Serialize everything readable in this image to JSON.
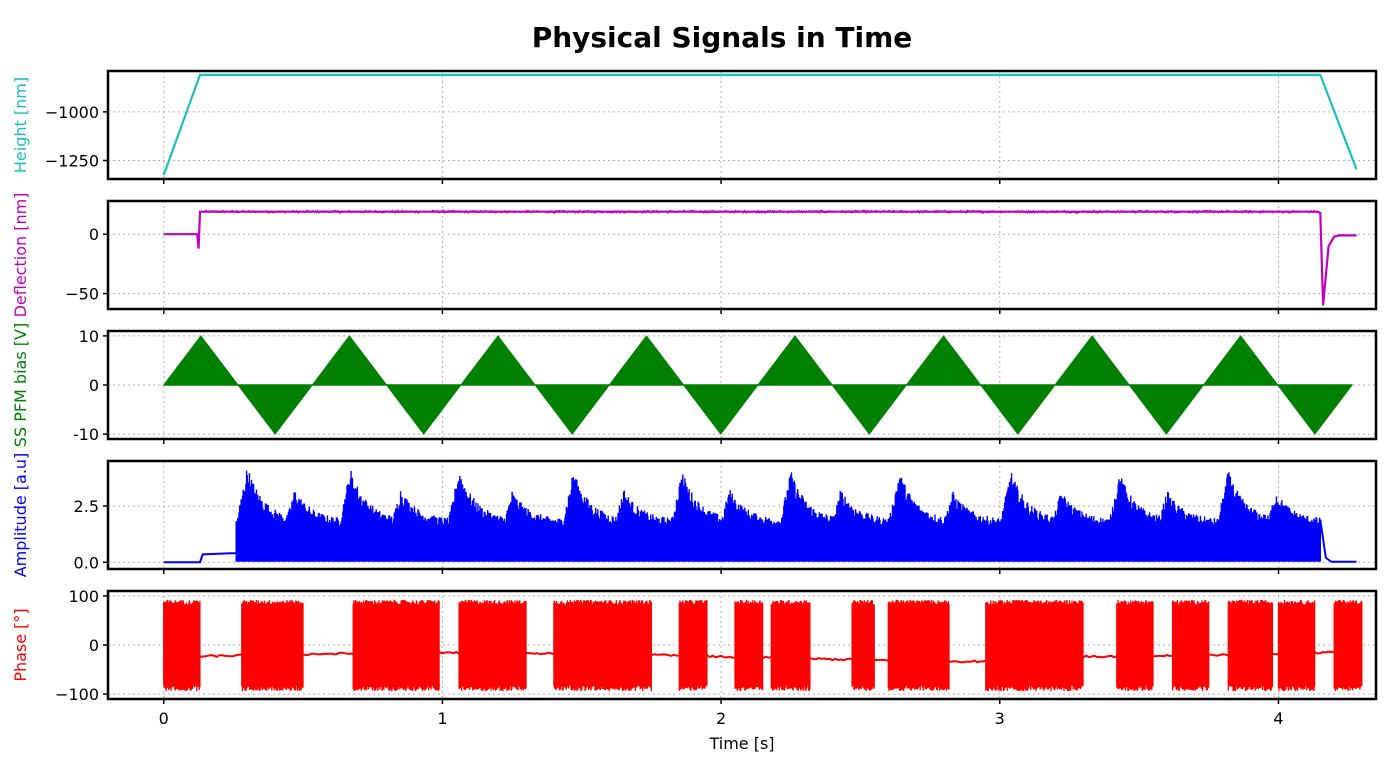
{
  "chart_data": {
    "type": "line",
    "title": "Physical Signals in Time",
    "xlabel": "Time [s]",
    "xlim": [
      -0.2,
      4.35
    ],
    "x_ticks": [
      0,
      1,
      2,
      3,
      4
    ],
    "x_tick_labels": [
      "0",
      "1",
      "2",
      "3",
      "4"
    ],
    "grid": true,
    "panels": [
      {
        "name": "height",
        "ylabel": "Height [nm]",
        "color": "#1ABFBF",
        "ylim": [
          -1345,
          -790
        ],
        "y_ticks": [
          -1000,
          -1250
        ],
        "y_tick_labels": [
          "−1000",
          "−1250"
        ],
        "series": [
          {
            "x": [
              0,
              0.13,
              4.15,
              4.28
            ],
            "y": [
              -1325,
              -810,
              -810,
              -1295
            ]
          }
        ]
      },
      {
        "name": "deflection",
        "ylabel": "Deflection [nm]",
        "color": "#BF00BF",
        "ylim": [
          -63,
          28
        ],
        "y_ticks": [
          0,
          -50
        ],
        "y_tick_labels": [
          "0",
          "−50"
        ],
        "series": [
          {
            "x": [
              0,
              0.12,
              0.125,
              0.13,
              0.135,
              4.14,
              4.15,
              4.16,
              4.17,
              4.18,
              4.2,
              4.22,
              4.28
            ],
            "y": [
              0,
              0,
              -12,
              19,
              19,
              19,
              18,
              -60,
              -35,
              -10,
              -2,
              -1,
              -1
            ]
          }
        ]
      },
      {
        "name": "bias",
        "ylabel": "SS PFM bias [V]",
        "color": "#008000",
        "ylim": [
          -11,
          11
        ],
        "y_ticks": [
          10,
          0,
          -10
        ],
        "y_tick_labels": [
          "10",
          "0",
          "-10"
        ],
        "cycle_period": 0.533,
        "cycles": 8,
        "amplitude": 10
      },
      {
        "name": "amplitude",
        "ylabel": "Amplitude [a.u]",
        "color": "#0000FF",
        "ylim": [
          -0.3,
          4.5
        ],
        "y_ticks": [
          2.5,
          0.0
        ],
        "y_tick_labels": [
          "2.5",
          "0.0"
        ],
        "peaks_x": [
          0.3,
          0.47,
          0.67,
          0.85,
          1.06,
          1.25,
          1.47,
          1.65,
          1.86,
          2.03,
          2.25,
          2.43,
          2.64,
          2.83,
          3.04,
          3.22,
          3.43,
          3.6,
          3.82,
          3.99
        ],
        "peaks_y": [
          4.3,
          3.3,
          4.2,
          3.3,
          4.2,
          3.2,
          4.1,
          3.3,
          4.1,
          3.3,
          4.1,
          3.3,
          4.1,
          3.2,
          4.1,
          3.2,
          4.0,
          3.2,
          4.1,
          3.2
        ]
      },
      {
        "name": "phase",
        "ylabel": "Phase [°]",
        "color": "#FF0000",
        "ylim": [
          -110,
          110
        ],
        "y_ticks": [
          100,
          0,
          -100
        ],
        "y_tick_labels": [
          "100",
          "0",
          "−100"
        ],
        "noisy_segments": [
          [
            0,
            0.13
          ],
          [
            0.28,
            0.37
          ],
          [
            0.37,
            0.5
          ],
          [
            0.68,
            0.99
          ],
          [
            1.06,
            1.3
          ],
          [
            1.4,
            1.5
          ],
          [
            1.47,
            1.75
          ],
          [
            1.85,
            1.95
          ],
          [
            2.05,
            2.15
          ],
          [
            2.18,
            2.32
          ],
          [
            2.47,
            2.55
          ],
          [
            2.6,
            2.82
          ],
          [
            2.95,
            3.1
          ],
          [
            3.05,
            3.3
          ],
          [
            3.42,
            3.55
          ],
          [
            3.62,
            3.75
          ],
          [
            3.82,
            3.98
          ],
          [
            4.0,
            4.13
          ],
          [
            4.2,
            4.3
          ]
        ]
      }
    ]
  }
}
